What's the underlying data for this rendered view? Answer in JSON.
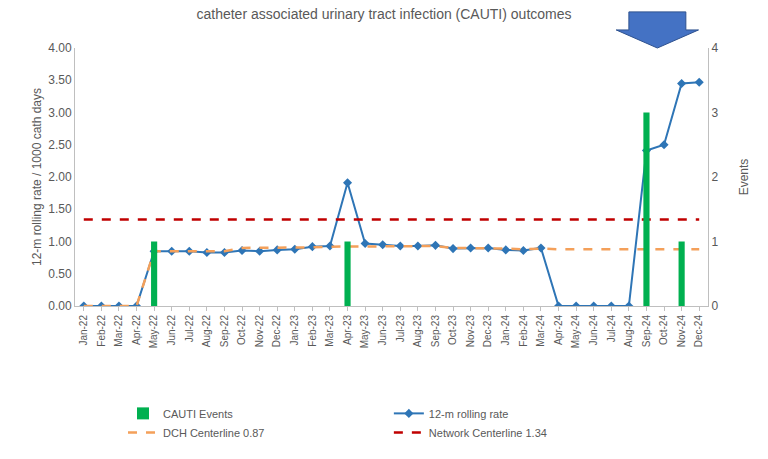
{
  "chart_data": {
    "type": "line",
    "title": "catheter associated urinary tract infection (CAUTI) outcomes",
    "y_label": "12-m rolling rate / 1000 cath days",
    "y2_label": "Events",
    "categories": [
      "Jan-22",
      "Feb-22",
      "Mar-22",
      "Apr-22",
      "May-22",
      "Jun-22",
      "Jul-22",
      "Aug-22",
      "Sep-22",
      "Oct-22",
      "Nov-22",
      "Dec-22",
      "Jan-23",
      "Feb-23",
      "Mar-23",
      "Apr-23",
      "May-23",
      "Jun-23",
      "Jul-23",
      "Aug-23",
      "Sep-23",
      "Oct-23",
      "Nov-23",
      "Dec-23",
      "Jan-24",
      "Feb-24",
      "Mar-24",
      "Apr-24",
      "May-24",
      "Jun-24",
      "Jul-24",
      "Aug-24",
      "Sep-24",
      "Oct-24",
      "Nov-24",
      "Dec-24"
    ],
    "series": [
      {
        "name": "CAUTI Events",
        "type": "bar",
        "axis": "y2",
        "color": "#00b050",
        "values": [
          0,
          0,
          0,
          0,
          1,
          0,
          0,
          0,
          0,
          0,
          0,
          0,
          0,
          0,
          0,
          1,
          0,
          0,
          0,
          0,
          0,
          0,
          0,
          0,
          0,
          0,
          0,
          0,
          0,
          0,
          0,
          0,
          3,
          0,
          1,
          0
        ]
      },
      {
        "name": "12-m rolling rate",
        "type": "line",
        "color": "#2e75b6",
        "marker": "diamond",
        "line_style": "solid",
        "values": [
          0,
          0,
          0,
          0,
          0.85,
          0.85,
          0.85,
          0.83,
          0.83,
          0.86,
          0.85,
          0.87,
          0.88,
          0.92,
          0.93,
          1.91,
          0.97,
          0.95,
          0.93,
          0.93,
          0.94,
          0.89,
          0.9,
          0.9,
          0.87,
          0.86,
          0.9,
          0,
          0,
          0,
          0,
          0,
          2.41,
          2.5,
          3.45,
          3.47
        ]
      },
      {
        "name": "DCH Centerline 0.87",
        "type": "line",
        "color": "#f4a05a",
        "line_style": "dash",
        "values": [
          0,
          0,
          0,
          0,
          0.85,
          0.85,
          0.85,
          0.84,
          0.85,
          0.9,
          0.9,
          0.9,
          0.9,
          0.91,
          0.92,
          0.92,
          0.93,
          0.93,
          0.92,
          0.93,
          0.93,
          0.9,
          0.9,
          0.9,
          0.89,
          0.88,
          0.89,
          0.88,
          0.88,
          0.88,
          0.88,
          0.88,
          0.88,
          0.88,
          0.88,
          0.88
        ]
      },
      {
        "name": "Network Centerline 1.34",
        "type": "line",
        "color": "#c00000",
        "line_style": "dash",
        "values": [
          1.34,
          1.34,
          1.34,
          1.34,
          1.34,
          1.34,
          1.34,
          1.34,
          1.34,
          1.34,
          1.34,
          1.34,
          1.34,
          1.34,
          1.34,
          1.34,
          1.34,
          1.34,
          1.34,
          1.34,
          1.34,
          1.34,
          1.34,
          1.34,
          1.34,
          1.34,
          1.34,
          1.34,
          1.34,
          1.34,
          1.34,
          1.34,
          1.34,
          1.34,
          1.34,
          1.34
        ]
      }
    ],
    "ylim": [
      0,
      4
    ],
    "yticks": [
      {
        "value": 0,
        "label": "0.00"
      },
      {
        "value": 0.5,
        "label": "0.50"
      },
      {
        "value": 1,
        "label": "1.00"
      },
      {
        "value": 1.5,
        "label": "1.50"
      },
      {
        "value": 2,
        "label": "2.00"
      },
      {
        "value": 2.5,
        "label": "2.50"
      },
      {
        "value": 3,
        "label": "3.00"
      },
      {
        "value": 3.5,
        "label": "3.50"
      },
      {
        "value": 4,
        "label": "4.00"
      }
    ],
    "y2lim": [
      0,
      4
    ],
    "y2ticks": [
      0,
      1,
      2,
      3,
      4
    ],
    "grid": false,
    "legend": "bottom"
  }
}
